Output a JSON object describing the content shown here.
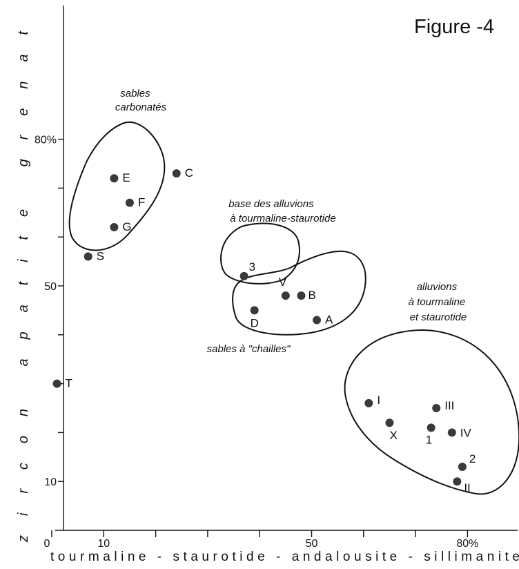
{
  "figure_title": "Figure -4",
  "chart_data": {
    "type": "scatter",
    "title": "Figure -4",
    "xlabel": "tourmaline - staurotide - andalousite - sillimanite",
    "ylabel": "zircon apatite grenat",
    "xlim": [
      0,
      88
    ],
    "ylim": [
      0,
      88
    ],
    "x_ticks": [
      0,
      10,
      50,
      "80%"
    ],
    "y_ticks": [
      10,
      50,
      "80%"
    ],
    "points": [
      {
        "label": "E",
        "x": 12,
        "y": 72
      },
      {
        "label": "F",
        "x": 15,
        "y": 67
      },
      {
        "label": "G",
        "x": 12,
        "y": 62
      },
      {
        "label": "S",
        "x": 7,
        "y": 56
      },
      {
        "label": "C",
        "x": 24,
        "y": 73
      },
      {
        "label": "T",
        "x": 1,
        "y": 30
      },
      {
        "label": "3",
        "x": 37,
        "y": 52
      },
      {
        "label": "V",
        "x": 45,
        "y": 48
      },
      {
        "label": "B",
        "x": 48,
        "y": 48
      },
      {
        "label": "D",
        "x": 39,
        "y": 45
      },
      {
        "label": "A",
        "x": 51,
        "y": 43
      },
      {
        "label": "I",
        "x": 61,
        "y": 26
      },
      {
        "label": "III",
        "x": 74,
        "y": 25
      },
      {
        "label": "X",
        "x": 65,
        "y": 22
      },
      {
        "label": "1",
        "x": 73,
        "y": 21
      },
      {
        "label": "IV",
        "x": 77,
        "y": 20
      },
      {
        "label": "2",
        "x": 79,
        "y": 13
      },
      {
        "label": "II",
        "x": 78,
        "y": 10
      }
    ],
    "groups": [
      {
        "label": "sables\ncarbonatés"
      },
      {
        "label": "base des alluvions\nà tourmaline-staurotide"
      },
      {
        "label": "sables à \"chailles\""
      },
      {
        "label": "alluvions\nà tourmaline\net staurotide"
      }
    ]
  }
}
